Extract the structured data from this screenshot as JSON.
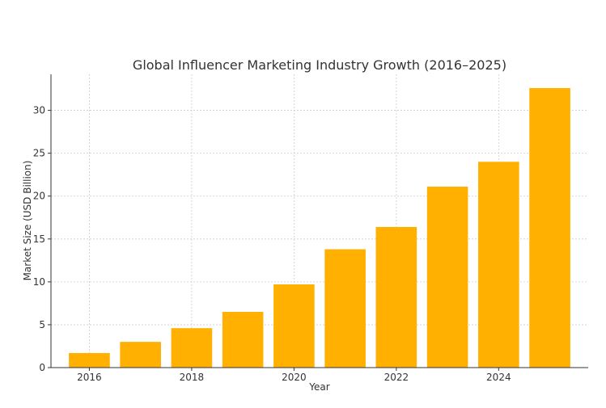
{
  "chart_data": {
    "type": "bar",
    "title": "Global Influencer Marketing Industry Growth (2016–2025)",
    "xlabel": "Year",
    "ylabel": "Market Size (USD Billion)",
    "x": [
      2016,
      2017,
      2018,
      2019,
      2020,
      2021,
      2022,
      2023,
      2024,
      2025
    ],
    "values": [
      1.7,
      3.0,
      4.6,
      6.5,
      9.7,
      13.8,
      16.4,
      21.1,
      24.0,
      32.6
    ],
    "xticks": [
      2016,
      2018,
      2020,
      2022,
      2024
    ],
    "yticks": [
      0,
      5,
      10,
      15,
      20,
      25,
      30
    ],
    "xlim": [
      2015.25,
      2025.75
    ],
    "ylim": [
      0,
      34.2
    ],
    "bar_color": "#FFB000",
    "grid": true,
    "legend": "none"
  }
}
